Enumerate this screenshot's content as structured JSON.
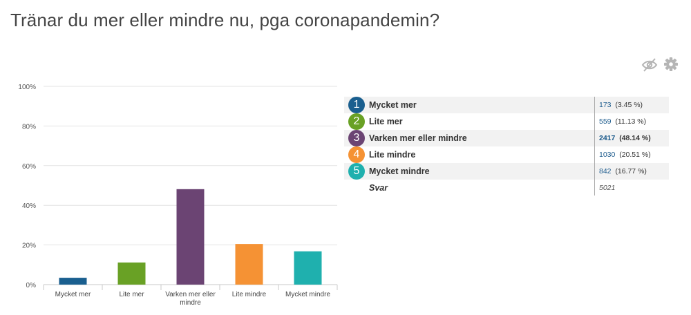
{
  "title": "Tränar du mer eller mindre nu, pga coronapandemin?",
  "toolbar": {
    "icons": [
      "eye-slash-icon",
      "gear-icon"
    ],
    "icon_color": "#b5b5b5"
  },
  "chart_data": {
    "type": "bar",
    "categories": [
      "Mycket mer",
      "Lite mer",
      "Varken mer eller mindre",
      "Lite mindre",
      "Mycket mindre"
    ],
    "category_lines": [
      [
        "Mycket mer"
      ],
      [
        "Lite mer"
      ],
      [
        "Varken mer eller",
        "mindre"
      ],
      [
        "Lite mindre"
      ],
      [
        "Mycket mindre"
      ]
    ],
    "values": [
      3.45,
      11.13,
      48.14,
      20.51,
      16.77
    ],
    "colors": [
      "#1a5f8f",
      "#69a125",
      "#6b4473",
      "#f59234",
      "#1fb0ae"
    ],
    "ylim": [
      0,
      100
    ],
    "yticks": [
      0,
      20,
      40,
      60,
      80,
      100
    ],
    "ytick_labels": [
      "0%",
      "20%",
      "40%",
      "60%",
      "80%",
      "100%"
    ],
    "xlabel": "",
    "ylabel": "",
    "grid": true
  },
  "table": {
    "rows": [
      {
        "num": "1",
        "label": "Mycket mer",
        "count": "173",
        "percent": "(3.45 %)",
        "color": "#1a5f8f",
        "highlight": false
      },
      {
        "num": "2",
        "label": "Lite mer",
        "count": "559",
        "percent": "(11.13 %)",
        "color": "#69a125",
        "highlight": false
      },
      {
        "num": "3",
        "label": "Varken mer eller mindre",
        "count": "2417",
        "percent": "(48.14 %)",
        "color": "#6b4473",
        "highlight": true
      },
      {
        "num": "4",
        "label": "Lite mindre",
        "count": "1030",
        "percent": "(20.51 %)",
        "color": "#f59234",
        "highlight": false
      },
      {
        "num": "5",
        "label": "Mycket mindre",
        "count": "842",
        "percent": "(16.77 %)",
        "color": "#1fb0ae",
        "highlight": false
      }
    ],
    "total": {
      "label": "Svar",
      "value": "5021"
    }
  }
}
